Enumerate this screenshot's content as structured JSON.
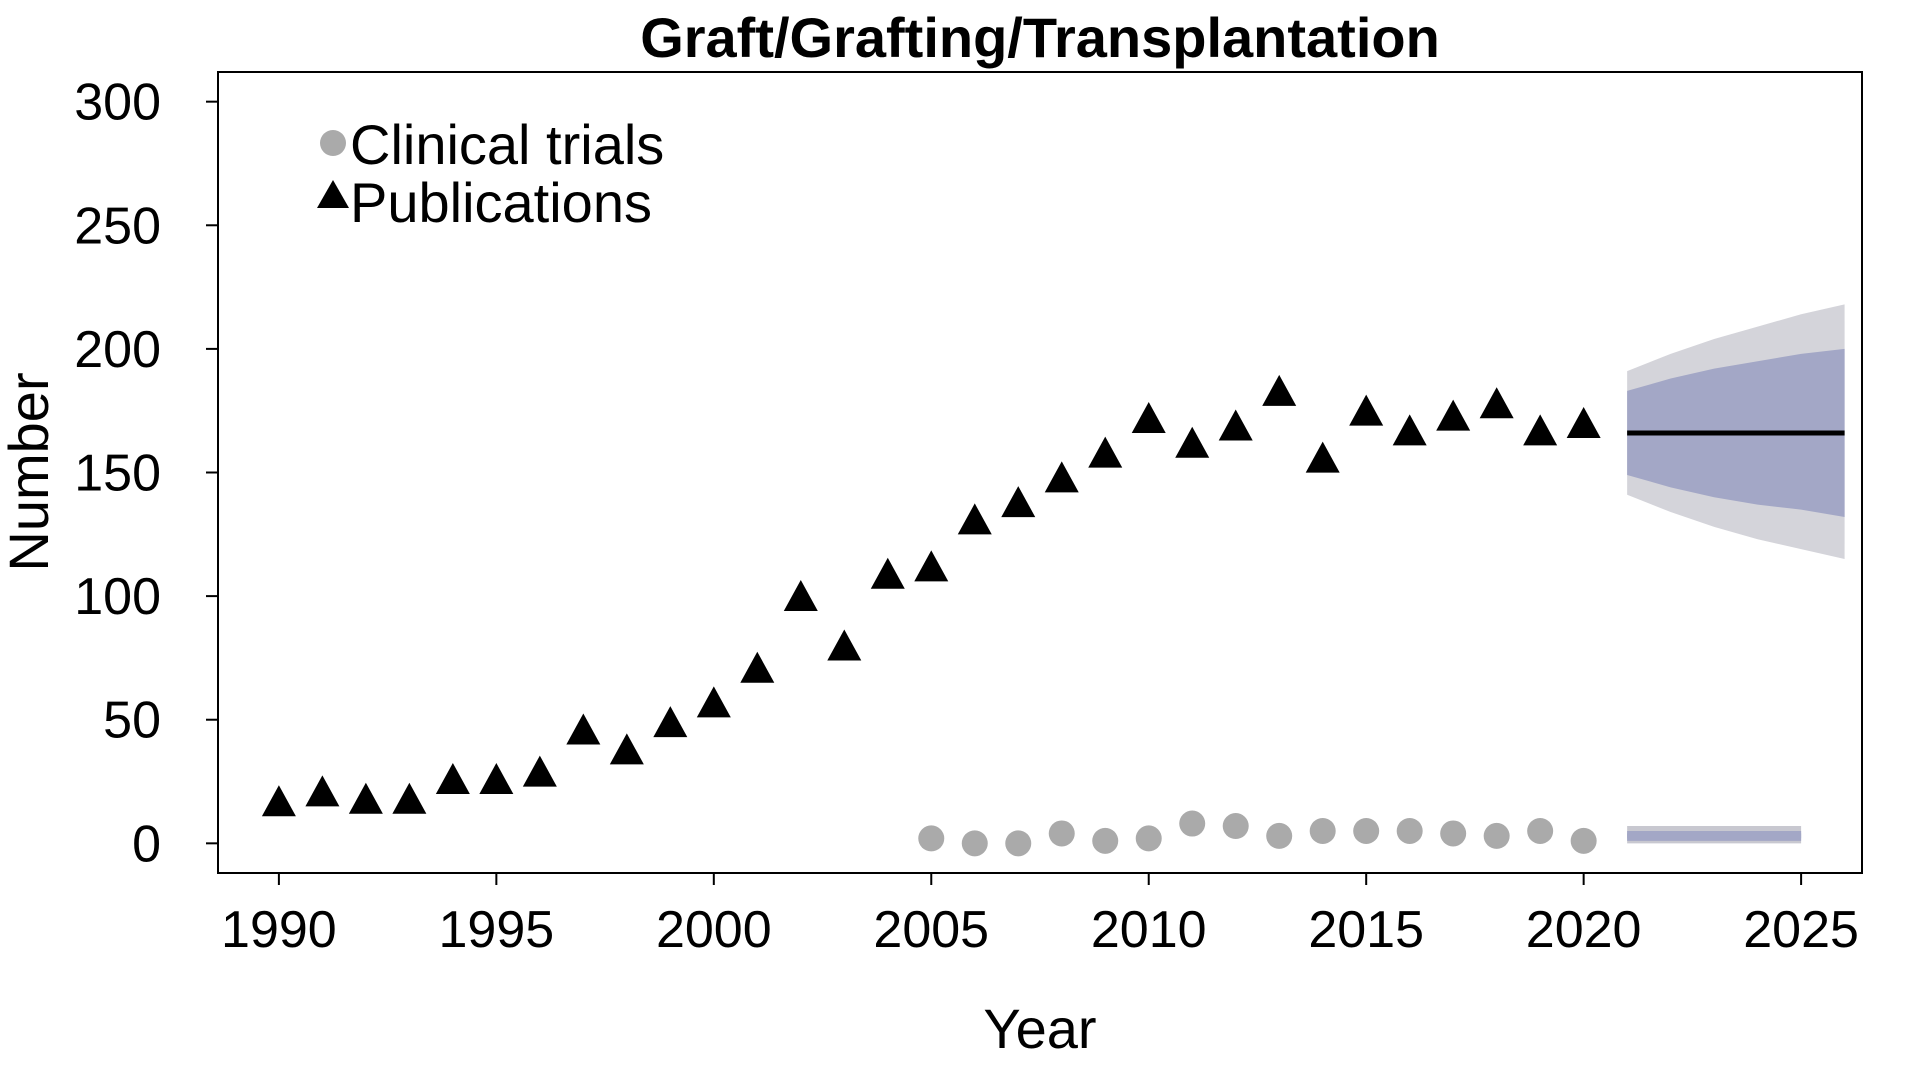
{
  "chart_data": {
    "type": "scatter",
    "title": "Graft/Grafting/Transplantation",
    "xlabel": "Year",
    "ylabel": "Number",
    "xlim": [
      1988.6,
      2026.4
    ],
    "ylim": [
      -12,
      312
    ],
    "x_ticks": [
      1990,
      1995,
      2000,
      2005,
      2010,
      2015,
      2020,
      2025
    ],
    "y_ticks": [
      0,
      50,
      100,
      150,
      200,
      250,
      300
    ],
    "legend": {
      "placement": "top-left",
      "items": [
        {
          "label": "Clinical trials",
          "marker": "circle",
          "color": "#aaaaaa"
        },
        {
          "label": "Publications",
          "marker": "triangle",
          "color": "#000000"
        }
      ]
    },
    "series": [
      {
        "name": "Publications",
        "marker": "triangle",
        "color": "#000000",
        "x": [
          1990,
          1991,
          1992,
          1993,
          1994,
          1995,
          1996,
          1997,
          1998,
          1999,
          2000,
          2001,
          2002,
          2003,
          2004,
          2005,
          2006,
          2007,
          2008,
          2009,
          2010,
          2011,
          2012,
          2013,
          2014,
          2015,
          2016,
          2017,
          2018,
          2019,
          2020
        ],
        "y": [
          15,
          19,
          16,
          16,
          24,
          24,
          27,
          44,
          36,
          47,
          55,
          69,
          98,
          78,
          107,
          110,
          129,
          136,
          146,
          156,
          170,
          160,
          167,
          181,
          154,
          173,
          165,
          171,
          176,
          165,
          168
        ]
      },
      {
        "name": "Clinical trials",
        "marker": "circle",
        "color": "#aaaaaa",
        "x": [
          2005,
          2006,
          2007,
          2008,
          2009,
          2010,
          2011,
          2012,
          2013,
          2014,
          2015,
          2016,
          2017,
          2018,
          2019,
          2020
        ],
        "y": [
          2,
          0,
          0,
          4,
          1,
          2,
          8,
          7,
          3,
          5,
          5,
          5,
          4,
          3,
          5,
          1
        ]
      }
    ],
    "forecasts": [
      {
        "for": "Publications",
        "line_color": "#000000",
        "x": [
          2021,
          2022,
          2023,
          2024,
          2025,
          2026
        ],
        "mean": [
          166,
          166,
          166,
          166,
          166,
          166
        ],
        "inner_lower": [
          149,
          144,
          140,
          137,
          135,
          132
        ],
        "inner_upper": [
          183,
          188,
          192,
          195,
          198,
          200
        ],
        "outer_lower": [
          141,
          134,
          128,
          123,
          119,
          115
        ],
        "outer_upper": [
          191,
          198,
          204,
          209,
          214,
          218
        ],
        "inner_color": "#a3a7c6",
        "outer_color": "#d4d4da"
      },
      {
        "for": "Clinical trials",
        "line_color": "#a3a7c6",
        "x": [
          2021,
          2025
        ],
        "mean": [
          3,
          3
        ],
        "inner_lower": [
          1,
          1
        ],
        "inner_upper": [
          5,
          5
        ],
        "outer_lower": [
          0,
          0
        ],
        "outer_upper": [
          7,
          7
        ],
        "inner_color": "#a3a7c6",
        "outer_color": "#c8c8d0"
      }
    ]
  }
}
